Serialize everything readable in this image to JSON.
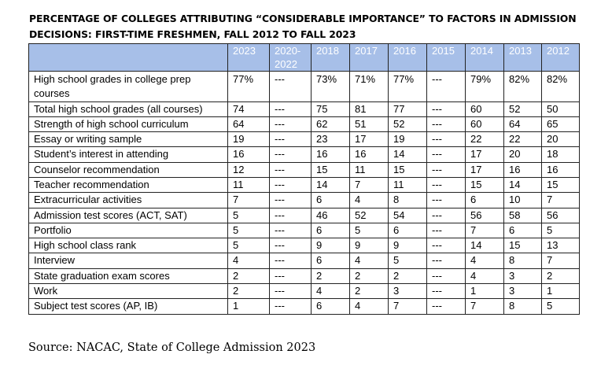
{
  "title": {
    "line1": "PERCENTAGE OF COLLEGES ATTRIBUTING “CONSIDERABLE IMPORTANCE” TO FACTORS IN ADMISSION",
    "line2": "DECISIONS: FIRST-TIME FRESHMEN, FALL 2012 TO FALL 2023"
  },
  "table": {
    "corner_header": "",
    "year_headers": [
      "2023",
      "2020-2022",
      "2018",
      "2017",
      "2016",
      "2015",
      "2014",
      "2013",
      "2012"
    ],
    "rows": [
      {
        "factor": "High school grades in college prep courses",
        "values": [
          "77%",
          "---",
          "73%",
          "71%",
          "77%",
          "---",
          "79%",
          "82%",
          "82%"
        ]
      },
      {
        "factor": "Total high school grades (all courses)",
        "values": [
          "74",
          "---",
          "75",
          "81",
          "77",
          "---",
          "60",
          "52",
          "50"
        ]
      },
      {
        "factor": "Strength of high school curriculum",
        "values": [
          "64",
          "---",
          "62",
          "51",
          "52",
          "---",
          "60",
          "64",
          "65"
        ]
      },
      {
        "factor": "Essay or writing sample",
        "values": [
          "19",
          "---",
          "23",
          "17",
          "19",
          "---",
          "22",
          "22",
          "20"
        ]
      },
      {
        "factor": "Student’s interest in attending",
        "values": [
          "16",
          "---",
          "16",
          "16",
          "14",
          "---",
          "17",
          "20",
          "18"
        ]
      },
      {
        "factor": "Counselor recommendation",
        "values": [
          "12",
          "---",
          "15",
          "11",
          "15",
          "---",
          "17",
          "16",
          "16"
        ]
      },
      {
        "factor": "Teacher recommendation",
        "values": [
          "11",
          "---",
          "14",
          "7",
          "11",
          "---",
          "15",
          "14",
          "15"
        ]
      },
      {
        "factor": "Extracurricular activities",
        "values": [
          "7",
          "---",
          "6",
          "4",
          "8",
          "---",
          "6",
          "10",
          "7"
        ]
      },
      {
        "factor": "Admission test scores (ACT, SAT)",
        "values": [
          "5",
          "---",
          "46",
          "52",
          "54",
          "---",
          "56",
          "58",
          "56"
        ]
      },
      {
        "factor": "Portfolio",
        "values": [
          "5",
          "---",
          "6",
          "5",
          "6",
          "---",
          "7",
          "6",
          "5"
        ]
      },
      {
        "factor": "High school class rank",
        "values": [
          "5",
          "---",
          "9",
          "9",
          "9",
          "---",
          "14",
          "15",
          "13"
        ]
      },
      {
        "factor": "Interview",
        "values": [
          "4",
          "---",
          "6",
          "4",
          "5",
          "---",
          "4",
          "8",
          "7"
        ]
      },
      {
        "factor": "State graduation exam scores",
        "values": [
          "2",
          "---",
          "2",
          "2",
          "2",
          "---",
          "4",
          "3",
          "2"
        ]
      },
      {
        "factor": "Work",
        "values": [
          "2",
          "---",
          "4",
          "2",
          "3",
          "---",
          "1",
          "3",
          "1"
        ]
      },
      {
        "factor": "Subject test scores (AP, IB)",
        "values": [
          "1",
          "---",
          "6",
          "4",
          "7",
          "---",
          "7",
          "8",
          "5"
        ]
      }
    ]
  },
  "source": "Source: NACAC, State of College Admission 2023",
  "colors": {
    "header_background": "#a7bfe8",
    "header_text": "#ffffff",
    "border": "#222222"
  }
}
